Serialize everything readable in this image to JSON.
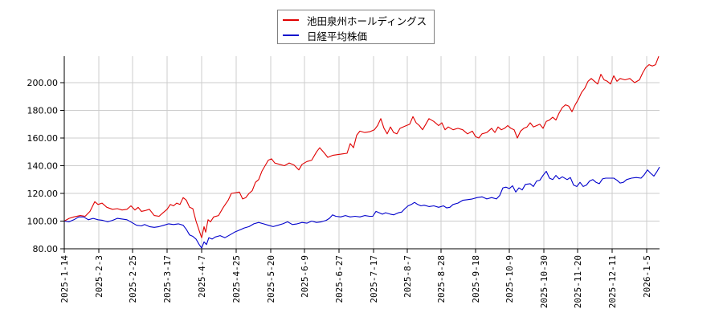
{
  "chart_data": {
    "type": "line",
    "title": "",
    "xlabel": "",
    "ylabel": "",
    "ylim": [
      80,
      220
    ],
    "grid": true,
    "legend_position": "top-center",
    "x_ticks": [
      "2025-1-14",
      "2025-2-3",
      "2025-2-25",
      "2025-3-17",
      "2025-4-7",
      "2025-4-25",
      "2025-5-20",
      "2025-6-9",
      "2025-6-27",
      "2025-7-17",
      "2025-8-7",
      "2025-8-28",
      "2025-9-18",
      "2025-10-9",
      "2025-10-30",
      "2025-11-20",
      "2025-12-11",
      "2026-1-5"
    ],
    "y_ticks": [
      "80.00",
      "100.00",
      "120.00",
      "140.00",
      "160.00",
      "180.00",
      "200.00"
    ],
    "series": [
      {
        "name": "池田泉州ホールディングス",
        "color": "#e00000",
        "points": [
          [
            80,
            100.0
          ],
          [
            86,
            102.0
          ],
          [
            92,
            103.0
          ],
          [
            100,
            104.0
          ],
          [
            106,
            103.5
          ],
          [
            112,
            107.0
          ],
          [
            118,
            114.0
          ],
          [
            122,
            112.0
          ],
          [
            127,
            113.0
          ],
          [
            133,
            110.0
          ],
          [
            140,
            108.5
          ],
          [
            146,
            109.0
          ],
          [
            152,
            108.0
          ],
          [
            158,
            108.5
          ],
          [
            163,
            111.0
          ],
          [
            168,
            108.0
          ],
          [
            172,
            110.0
          ],
          [
            176,
            107.0
          ],
          [
            180,
            107.5
          ],
          [
            186,
            108.5
          ],
          [
            192,
            104.0
          ],
          [
            198,
            103.5
          ],
          [
            203,
            106.0
          ],
          [
            208,
            108.5
          ],
          [
            212,
            112.0
          ],
          [
            216,
            111.0
          ],
          [
            220,
            113.0
          ],
          [
            224,
            112.0
          ],
          [
            228,
            117.0
          ],
          [
            232,
            115.0
          ],
          [
            236,
            110.0
          ],
          [
            240,
            109.0
          ],
          [
            244,
            100.0
          ],
          [
            248,
            93.0
          ],
          [
            251,
            88.0
          ],
          [
            254,
            96.0
          ],
          [
            256,
            92.0
          ],
          [
            259,
            101.0
          ],
          [
            262,
            99.5
          ],
          [
            266,
            103.0
          ],
          [
            272,
            104.0
          ],
          [
            278,
            110.0
          ],
          [
            284,
            115.0
          ],
          [
            288,
            120.0
          ],
          [
            294,
            120.5
          ],
          [
            298,
            121.0
          ],
          [
            302,
            116.0
          ],
          [
            306,
            117.0
          ],
          [
            310,
            120.0
          ],
          [
            314,
            122.0
          ],
          [
            318,
            128.0
          ],
          [
            322,
            130.0
          ],
          [
            326,
            136.0
          ],
          [
            330,
            140.0
          ],
          [
            334,
            144.0
          ],
          [
            338,
            145.0
          ],
          [
            342,
            142.0
          ],
          [
            348,
            141.0
          ],
          [
            354,
            140.0
          ],
          [
            360,
            142.0
          ],
          [
            366,
            140.5
          ],
          [
            372,
            137.0
          ],
          [
            376,
            141.0
          ],
          [
            382,
            143.0
          ],
          [
            388,
            144.0
          ],
          [
            394,
            150.0
          ],
          [
            398,
            153.0
          ],
          [
            404,
            149.0
          ],
          [
            408,
            146.0
          ],
          [
            414,
            147.5
          ],
          [
            420,
            148.0
          ],
          [
            426,
            148.5
          ],
          [
            432,
            149.0
          ],
          [
            436,
            156.0
          ],
          [
            440,
            153.0
          ],
          [
            444,
            162.0
          ],
          [
            448,
            165.0
          ],
          [
            454,
            164.0
          ],
          [
            460,
            164.5
          ],
          [
            466,
            166.0
          ],
          [
            470,
            169.0
          ],
          [
            474,
            174.0
          ],
          [
            478,
            167.0
          ],
          [
            482,
            163.0
          ],
          [
            486,
            168.0
          ],
          [
            490,
            164.0
          ],
          [
            494,
            163.0
          ],
          [
            498,
            167.0
          ],
          [
            504,
            168.5
          ],
          [
            510,
            170.0
          ],
          [
            514,
            175.5
          ],
          [
            518,
            171.0
          ],
          [
            522,
            169.0
          ],
          [
            526,
            166.0
          ],
          [
            530,
            170.0
          ],
          [
            534,
            174.0
          ],
          [
            540,
            172.0
          ],
          [
            546,
            169.0
          ],
          [
            550,
            171.0
          ],
          [
            554,
            166.0
          ],
          [
            558,
            168.0
          ],
          [
            564,
            166.0
          ],
          [
            570,
            167.0
          ],
          [
            576,
            166.0
          ],
          [
            582,
            163.0
          ],
          [
            588,
            165.0
          ],
          [
            592,
            161.0
          ],
          [
            596,
            160.0
          ],
          [
            600,
            163.0
          ],
          [
            606,
            164.0
          ],
          [
            612,
            167.0
          ],
          [
            616,
            164.0
          ],
          [
            620,
            168.0
          ],
          [
            624,
            166.0
          ],
          [
            628,
            167.0
          ],
          [
            632,
            169.0
          ],
          [
            636,
            167.0
          ],
          [
            640,
            166.0
          ],
          [
            644,
            160.0
          ],
          [
            648,
            165.0
          ],
          [
            652,
            167.0
          ],
          [
            656,
            168.0
          ],
          [
            660,
            171.0
          ],
          [
            664,
            168.0
          ],
          [
            668,
            169.0
          ],
          [
            672,
            170.0
          ],
          [
            676,
            167.0
          ],
          [
            680,
            172.0
          ],
          [
            684,
            173.0
          ],
          [
            688,
            175.0
          ],
          [
            692,
            173.0
          ],
          [
            696,
            178.0
          ],
          [
            700,
            182.0
          ],
          [
            704,
            184.0
          ],
          [
            708,
            183.0
          ],
          [
            712,
            179.0
          ],
          [
            716,
            184.0
          ],
          [
            720,
            188.0
          ],
          [
            724,
            193.0
          ],
          [
            728,
            196.0
          ],
          [
            732,
            201.0
          ],
          [
            736,
            203.0
          ],
          [
            740,
            201.0
          ],
          [
            744,
            199.0
          ],
          [
            748,
            206.0
          ],
          [
            752,
            202.0
          ],
          [
            756,
            201.0
          ],
          [
            760,
            199.0
          ],
          [
            764,
            205.0
          ],
          [
            768,
            201.0
          ],
          [
            772,
            203.0
          ],
          [
            778,
            202.0
          ],
          [
            784,
            203.0
          ],
          [
            790,
            200.0
          ],
          [
            796,
            202.0
          ],
          [
            800,
            207.0
          ],
          [
            804,
            211.0
          ],
          [
            808,
            213.0
          ],
          [
            812,
            212.0
          ],
          [
            816,
            213.0
          ],
          [
            820,
            219.0
          ]
        ]
      },
      {
        "name": "日経平均株価",
        "color": "#0000cc",
        "points": [
          [
            80,
            100.0
          ],
          [
            86,
            99.5
          ],
          [
            92,
            101.0
          ],
          [
            98,
            103.0
          ],
          [
            104,
            103.0
          ],
          [
            110,
            101.0
          ],
          [
            116,
            102.0
          ],
          [
            122,
            101.0
          ],
          [
            128,
            100.5
          ],
          [
            134,
            99.5
          ],
          [
            140,
            100.5
          ],
          [
            146,
            102.0
          ],
          [
            152,
            101.5
          ],
          [
            158,
            101.0
          ],
          [
            164,
            99.0
          ],
          [
            170,
            97.0
          ],
          [
            176,
            96.5
          ],
          [
            180,
            97.5
          ],
          [
            186,
            96.0
          ],
          [
            192,
            95.5
          ],
          [
            198,
            96.0
          ],
          [
            204,
            97.0
          ],
          [
            210,
            98.0
          ],
          [
            216,
            97.5
          ],
          [
            222,
            98.0
          ],
          [
            228,
            97.0
          ],
          [
            232,
            94.0
          ],
          [
            236,
            90.0
          ],
          [
            240,
            89.0
          ],
          [
            244,
            87.0
          ],
          [
            248,
            83.0
          ],
          [
            251,
            80.5
          ],
          [
            254,
            85.0
          ],
          [
            257,
            83.0
          ],
          [
            260,
            88.0
          ],
          [
            264,
            87.0
          ],
          [
            268,
            88.5
          ],
          [
            274,
            89.5
          ],
          [
            280,
            88.0
          ],
          [
            286,
            90.0
          ],
          [
            292,
            92.0
          ],
          [
            298,
            93.5
          ],
          [
            304,
            95.0
          ],
          [
            310,
            96.0
          ],
          [
            316,
            98.0
          ],
          [
            322,
            99.0
          ],
          [
            328,
            98.0
          ],
          [
            334,
            97.0
          ],
          [
            340,
            96.0
          ],
          [
            346,
            97.0
          ],
          [
            352,
            98.0
          ],
          [
            358,
            99.5
          ],
          [
            364,
            97.5
          ],
          [
            370,
            98.0
          ],
          [
            376,
            99.0
          ],
          [
            382,
            98.5
          ],
          [
            388,
            100.0
          ],
          [
            394,
            99.0
          ],
          [
            400,
            99.5
          ],
          [
            406,
            100.5
          ],
          [
            410,
            102.0
          ],
          [
            414,
            104.5
          ],
          [
            418,
            103.5
          ],
          [
            424,
            103.0
          ],
          [
            430,
            104.0
          ],
          [
            436,
            103.0
          ],
          [
            442,
            103.5
          ],
          [
            448,
            103.0
          ],
          [
            454,
            104.0
          ],
          [
            460,
            103.5
          ],
          [
            464,
            103.5
          ],
          [
            468,
            107.0
          ],
          [
            472,
            106.0
          ],
          [
            476,
            105.0
          ],
          [
            480,
            106.0
          ],
          [
            486,
            105.0
          ],
          [
            490,
            104.5
          ],
          [
            496,
            106.0
          ],
          [
            500,
            106.5
          ],
          [
            504,
            109.0
          ],
          [
            508,
            111.0
          ],
          [
            512,
            112.0
          ],
          [
            516,
            113.5
          ],
          [
            520,
            112.0
          ],
          [
            524,
            111.0
          ],
          [
            528,
            111.5
          ],
          [
            534,
            110.5
          ],
          [
            540,
            111.0
          ],
          [
            546,
            110.0
          ],
          [
            552,
            111.0
          ],
          [
            556,
            109.5
          ],
          [
            560,
            110.0
          ],
          [
            564,
            112.0
          ],
          [
            570,
            113.0
          ],
          [
            576,
            115.0
          ],
          [
            582,
            115.5
          ],
          [
            588,
            116.0
          ],
          [
            594,
            117.0
          ],
          [
            600,
            117.5
          ],
          [
            606,
            116.0
          ],
          [
            612,
            117.0
          ],
          [
            618,
            116.0
          ],
          [
            622,
            118.5
          ],
          [
            626,
            124.0
          ],
          [
            630,
            124.5
          ],
          [
            634,
            123.5
          ],
          [
            638,
            125.5
          ],
          [
            642,
            121.0
          ],
          [
            646,
            124.0
          ],
          [
            650,
            122.5
          ],
          [
            654,
            126.5
          ],
          [
            660,
            127.0
          ],
          [
            664,
            125.0
          ],
          [
            668,
            129.0
          ],
          [
            672,
            129.5
          ],
          [
            676,
            133.0
          ],
          [
            680,
            136.0
          ],
          [
            684,
            131.0
          ],
          [
            688,
            130.0
          ],
          [
            692,
            133.0
          ],
          [
            696,
            130.5
          ],
          [
            700,
            132.0
          ],
          [
            706,
            130.0
          ],
          [
            710,
            131.5
          ],
          [
            714,
            126.0
          ],
          [
            718,
            125.0
          ],
          [
            722,
            128.0
          ],
          [
            726,
            125.0
          ],
          [
            730,
            126.0
          ],
          [
            734,
            129.0
          ],
          [
            738,
            130.0
          ],
          [
            742,
            128.0
          ],
          [
            746,
            127.0
          ],
          [
            750,
            130.5
          ],
          [
            754,
            131.0
          ],
          [
            758,
            131.0
          ],
          [
            764,
            131.0
          ],
          [
            768,
            129.5
          ],
          [
            772,
            127.5
          ],
          [
            776,
            128.0
          ],
          [
            780,
            130.0
          ],
          [
            786,
            131.0
          ],
          [
            792,
            131.5
          ],
          [
            798,
            131.0
          ],
          [
            802,
            133.5
          ],
          [
            806,
            137.0
          ],
          [
            810,
            134.5
          ],
          [
            814,
            132.5
          ],
          [
            818,
            136.0
          ],
          [
            821,
            139.0
          ]
        ]
      }
    ]
  },
  "legend": {
    "items": [
      {
        "label": "池田泉州ホールディングス",
        "color": "#e00000"
      },
      {
        "label": "日経平均株価",
        "color": "#0000cc"
      }
    ]
  }
}
